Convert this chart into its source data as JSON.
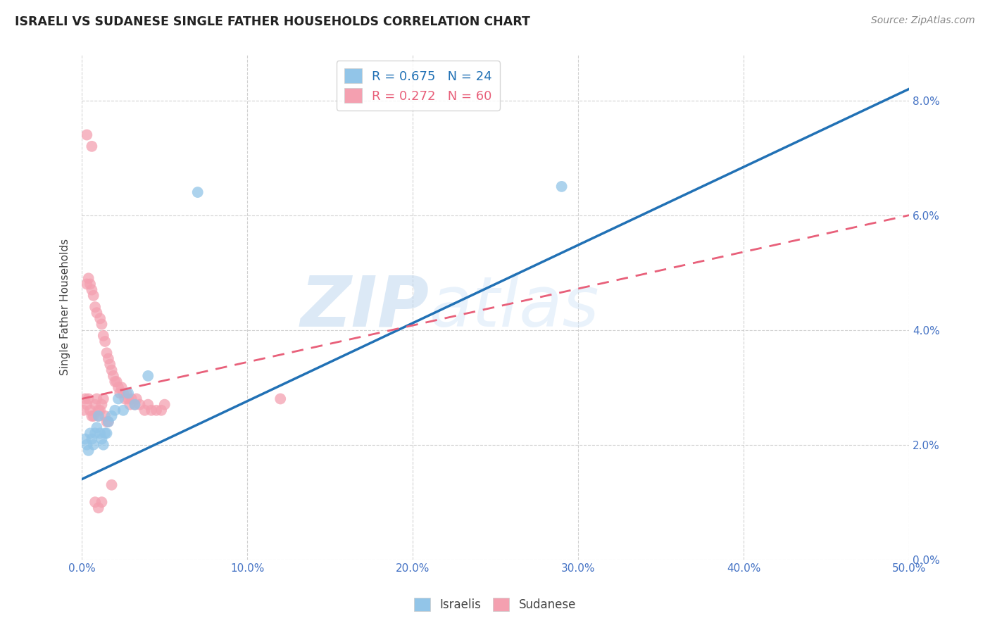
{
  "title": "ISRAELI VS SUDANESE SINGLE FATHER HOUSEHOLDS CORRELATION CHART",
  "source": "Source: ZipAtlas.com",
  "ylabel": "Single Father Households",
  "xlim": [
    0.0,
    0.5
  ],
  "ylim": [
    0.0,
    0.088
  ],
  "watermark_zip": "ZIP",
  "watermark_atlas": "atlas",
  "israeli_color": "#92C5E8",
  "sudanese_color": "#F4A0B0",
  "israeli_line_color": "#2171B5",
  "sudanese_line_color": "#E8607A",
  "R_israeli": 0.675,
  "N_israeli": 24,
  "R_sudanese": 0.272,
  "N_sudanese": 60,
  "background_color": "#ffffff",
  "grid_color": "#cccccc",
  "title_color": "#222222",
  "tick_color": "#4472C4",
  "israeli_line_start_y": 0.014,
  "israeli_line_end_y": 0.082,
  "sudanese_line_start_y": 0.028,
  "sudanese_line_end_y": 0.06,
  "israeli_x": [
    0.002,
    0.003,
    0.004,
    0.005,
    0.006,
    0.007,
    0.008,
    0.009,
    0.01,
    0.011,
    0.012,
    0.013,
    0.014,
    0.015,
    0.016,
    0.018,
    0.02,
    0.022,
    0.025,
    0.028,
    0.032,
    0.04,
    0.07,
    0.29
  ],
  "israeli_y": [
    0.021,
    0.02,
    0.019,
    0.022,
    0.021,
    0.02,
    0.022,
    0.023,
    0.025,
    0.022,
    0.021,
    0.02,
    0.022,
    0.022,
    0.024,
    0.025,
    0.026,
    0.028,
    0.026,
    0.029,
    0.027,
    0.032,
    0.064,
    0.065
  ],
  "sudanese_x": [
    0.001,
    0.002,
    0.003,
    0.003,
    0.004,
    0.004,
    0.005,
    0.005,
    0.006,
    0.006,
    0.007,
    0.007,
    0.008,
    0.008,
    0.009,
    0.009,
    0.01,
    0.01,
    0.011,
    0.011,
    0.012,
    0.012,
    0.013,
    0.013,
    0.014,
    0.014,
    0.015,
    0.015,
    0.016,
    0.016,
    0.017,
    0.018,
    0.019,
    0.02,
    0.021,
    0.022,
    0.023,
    0.024,
    0.025,
    0.026,
    0.027,
    0.028,
    0.029,
    0.03,
    0.032,
    0.033,
    0.035,
    0.038,
    0.04,
    0.042,
    0.045,
    0.048,
    0.05,
    0.12,
    0.003,
    0.006,
    0.008,
    0.01,
    0.012,
    0.018
  ],
  "sudanese_y": [
    0.026,
    0.028,
    0.027,
    0.048,
    0.028,
    0.049,
    0.026,
    0.048,
    0.025,
    0.047,
    0.025,
    0.046,
    0.027,
    0.044,
    0.028,
    0.043,
    0.026,
    0.025,
    0.026,
    0.042,
    0.027,
    0.041,
    0.028,
    0.039,
    0.025,
    0.038,
    0.024,
    0.036,
    0.035,
    0.024,
    0.034,
    0.033,
    0.032,
    0.031,
    0.031,
    0.03,
    0.029,
    0.03,
    0.029,
    0.028,
    0.029,
    0.028,
    0.027,
    0.028,
    0.027,
    0.028,
    0.027,
    0.026,
    0.027,
    0.026,
    0.026,
    0.026,
    0.027,
    0.028,
    0.074,
    0.072,
    0.01,
    0.009,
    0.01,
    0.013
  ]
}
